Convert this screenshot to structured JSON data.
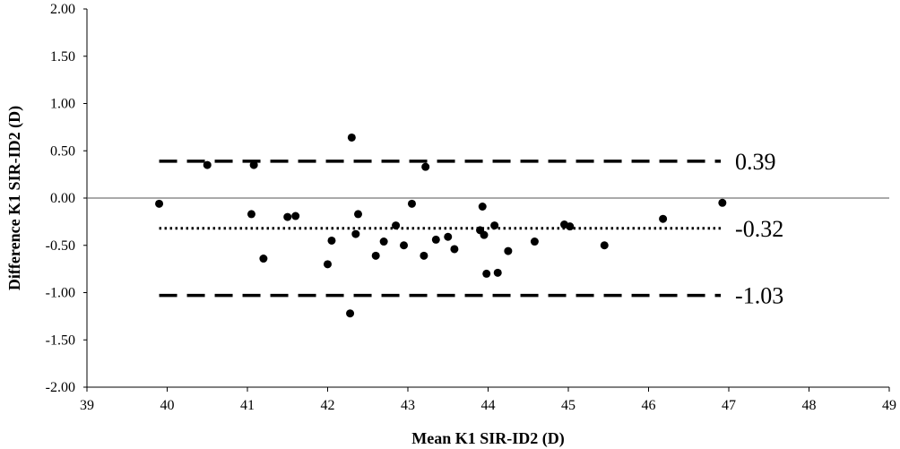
{
  "chart_data": {
    "type": "scatter",
    "title": "",
    "xlabel": "Mean K1 SIR-ID2 (D)",
    "ylabel": "Difference K1 SIR-ID2 (D)",
    "xlim": [
      39,
      49
    ],
    "ylim": [
      -2.0,
      2.0
    ],
    "x_ticks": [
      39,
      40,
      41,
      42,
      43,
      44,
      45,
      46,
      47,
      48,
      49
    ],
    "y_ticks": [
      2.0,
      1.5,
      1.0,
      0.5,
      0.0,
      -0.5,
      -1.0,
      -1.5,
      -2.0
    ],
    "x_tick_labels": [
      "39",
      "40",
      "41",
      "42",
      "43",
      "44",
      "45",
      "46",
      "47",
      "48",
      "49"
    ],
    "y_tick_labels": [
      "2.00",
      "1.50",
      "1.00",
      "0.50",
      "0.00",
      "-0.50",
      "-1.00",
      "-1.50",
      "-2.00"
    ],
    "grid": false,
    "reference_lines": [
      {
        "value": 0.39,
        "label": "0.39",
        "style": "dashed"
      },
      {
        "value": -0.32,
        "label": "-0.32",
        "style": "dotted"
      },
      {
        "value": -1.03,
        "label": "-1.03",
        "style": "dashed"
      }
    ],
    "reference_line_x_range": [
      39.9,
      46.9
    ],
    "points": [
      {
        "x": 39.9,
        "y": -0.06
      },
      {
        "x": 40.5,
        "y": 0.35
      },
      {
        "x": 41.05,
        "y": -0.17
      },
      {
        "x": 41.08,
        "y": 0.35
      },
      {
        "x": 41.2,
        "y": -0.64
      },
      {
        "x": 41.5,
        "y": -0.2
      },
      {
        "x": 41.6,
        "y": -0.19
      },
      {
        "x": 42.0,
        "y": -0.7
      },
      {
        "x": 42.05,
        "y": -0.45
      },
      {
        "x": 42.28,
        "y": -1.22
      },
      {
        "x": 42.3,
        "y": 0.64
      },
      {
        "x": 42.35,
        "y": -0.38
      },
      {
        "x": 42.38,
        "y": -0.17
      },
      {
        "x": 42.6,
        "y": -0.61
      },
      {
        "x": 42.7,
        "y": -0.46
      },
      {
        "x": 42.85,
        "y": -0.29
      },
      {
        "x": 42.95,
        "y": -0.5
      },
      {
        "x": 43.05,
        "y": -0.06
      },
      {
        "x": 43.2,
        "y": -0.61
      },
      {
        "x": 43.22,
        "y": 0.33
      },
      {
        "x": 43.35,
        "y": -0.44
      },
      {
        "x": 43.5,
        "y": -0.41
      },
      {
        "x": 43.58,
        "y": -0.54
      },
      {
        "x": 43.9,
        "y": -0.34
      },
      {
        "x": 43.93,
        "y": -0.09
      },
      {
        "x": 43.95,
        "y": -0.39
      },
      {
        "x": 43.98,
        "y": -0.8
      },
      {
        "x": 44.08,
        "y": -0.29
      },
      {
        "x": 44.12,
        "y": -0.79
      },
      {
        "x": 44.25,
        "y": -0.56
      },
      {
        "x": 44.58,
        "y": -0.46
      },
      {
        "x": 44.95,
        "y": -0.28
      },
      {
        "x": 45.02,
        "y": -0.3
      },
      {
        "x": 45.45,
        "y": -0.5
      },
      {
        "x": 46.18,
        "y": -0.22
      },
      {
        "x": 46.92,
        "y": -0.05
      }
    ]
  }
}
